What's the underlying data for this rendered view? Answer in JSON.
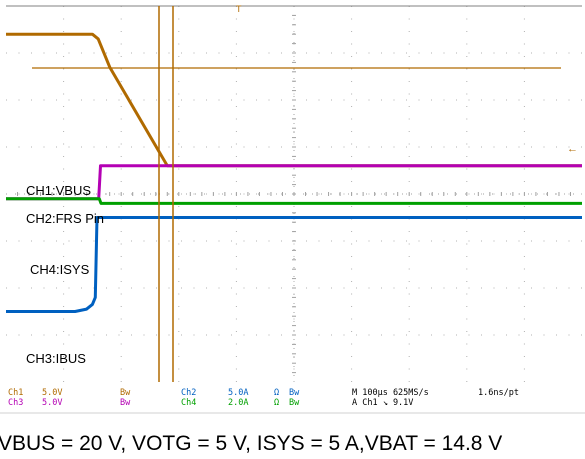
{
  "chart_data": {
    "type": "line",
    "title": "",
    "xlabel": "",
    "ylabel": "",
    "grid": true,
    "timebase": "M 100µs 625MS/s",
    "record": "1.6ns/pt",
    "trigger": "A  Ch1  ↘  9.1V",
    "x_unit": "µs",
    "xlim": [
      0,
      1000
    ],
    "ylim_divisions": [
      0,
      8
    ],
    "series": [
      {
        "name": "CH1:VBUS",
        "color": "#b06a00",
        "x": [
          0,
          150,
          160,
          180,
          280,
          1000
        ],
        "y": [
          7.4,
          7.4,
          7.3,
          6.7,
          4.6,
          4.6
        ]
      },
      {
        "name": "CH2:FRS Pin",
        "color": "#b400b4",
        "x": [
          0,
          161,
          164,
          1000
        ],
        "y": [
          3.9,
          3.9,
          4.6,
          4.6
        ]
      },
      {
        "name": "CH4:ISYS",
        "color": "#00a000",
        "x": [
          0,
          162,
          165,
          1000
        ],
        "y": [
          3.9,
          3.9,
          3.8,
          3.8
        ]
      },
      {
        "name": "CH3:IBUS",
        "color": "#0060c0",
        "x": [
          0,
          120,
          140,
          150,
          155,
          158,
          1000
        ],
        "y": [
          1.5,
          1.5,
          1.55,
          1.65,
          1.8,
          3.5,
          3.5
        ]
      }
    ],
    "channels": [
      {
        "id": "Ch1",
        "scale": "5.0V",
        "bw": "Bw"
      },
      {
        "id": "Ch3",
        "scale": "5.0V",
        "bw": "Bw"
      },
      {
        "id": "Ch2",
        "scale": "5.0A",
        "ohm": "Ω",
        "bw": "Bw"
      },
      {
        "id": "Ch4",
        "scale": "2.0A",
        "ohm": "Ω",
        "bw": "Bw"
      }
    ],
    "caption": "VBUS = 20 V, VOTG = 5 V, ISYS = 5 A,VBAT = 14.8 V"
  }
}
